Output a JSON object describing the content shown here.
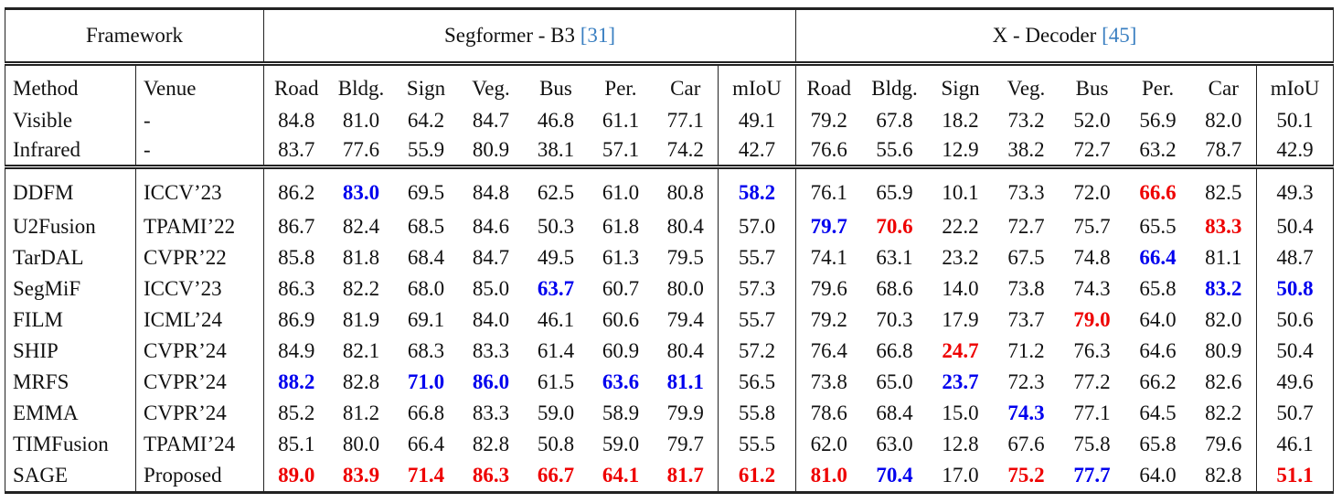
{
  "table": {
    "framework_label": "Framework",
    "groups": [
      {
        "name": "Segformer - B3",
        "cite": "[31]"
      },
      {
        "name": "X - Decoder",
        "cite": "[45]"
      }
    ],
    "cite_color": "#3a7fc1",
    "method_label": "Method",
    "venue_label": "Venue",
    "columns": [
      "Road",
      "Bldg.",
      "Sign",
      "Veg.",
      "Bus",
      "Per.",
      "Car",
      "mIoU"
    ],
    "baseline_rows": [
      {
        "method": "Visible",
        "venue": "-",
        "values": [
          "84.8",
          "81.0",
          "64.2",
          "84.7",
          "46.8",
          "61.1",
          "77.1",
          "49.1",
          "79.2",
          "67.8",
          "18.2",
          "73.2",
          "52.0",
          "56.9",
          "82.0",
          "50.1"
        ],
        "colors": [
          null,
          null,
          null,
          null,
          null,
          null,
          null,
          null,
          null,
          null,
          null,
          null,
          null,
          null,
          null,
          null
        ]
      },
      {
        "method": "Infrared",
        "venue": "-",
        "values": [
          "83.7",
          "77.6",
          "55.9",
          "80.9",
          "38.1",
          "57.1",
          "74.2",
          "42.7",
          "76.6",
          "55.6",
          "12.9",
          "38.2",
          "72.7",
          "63.2",
          "78.7",
          "42.9"
        ],
        "colors": [
          null,
          null,
          null,
          null,
          null,
          null,
          null,
          null,
          null,
          null,
          null,
          null,
          null,
          null,
          null,
          null
        ]
      }
    ],
    "rows": [
      {
        "method": "DDFM",
        "venue": "ICCV’23",
        "values": [
          "86.2",
          "83.0",
          "69.5",
          "84.8",
          "62.5",
          "61.0",
          "80.8",
          "58.2",
          "76.1",
          "65.9",
          "10.1",
          "73.3",
          "72.0",
          "66.6",
          "82.5",
          "49.3"
        ],
        "colors": [
          null,
          "#0000ee",
          null,
          null,
          null,
          null,
          null,
          "#0000ee",
          null,
          null,
          null,
          null,
          null,
          "#ee0000",
          null,
          null
        ]
      },
      {
        "method": "U2Fusion",
        "venue": "TPAMI’22",
        "values": [
          "86.7",
          "82.4",
          "68.5",
          "84.6",
          "50.3",
          "61.8",
          "80.4",
          "57.0",
          "79.7",
          "70.6",
          "22.2",
          "72.7",
          "75.7",
          "65.5",
          "83.3",
          "50.4"
        ],
        "colors": [
          null,
          null,
          null,
          null,
          null,
          null,
          null,
          null,
          "#0000ee",
          "#ee0000",
          null,
          null,
          null,
          null,
          "#ee0000",
          null
        ]
      },
      {
        "method": "TarDAL",
        "venue": "CVPR’22",
        "values": [
          "85.8",
          "81.8",
          "68.4",
          "84.7",
          "49.5",
          "61.3",
          "79.5",
          "55.7",
          "74.1",
          "63.1",
          "23.2",
          "67.5",
          "74.8",
          "66.4",
          "81.1",
          "48.7"
        ],
        "colors": [
          null,
          null,
          null,
          null,
          null,
          null,
          null,
          null,
          null,
          null,
          null,
          null,
          null,
          "#0000ee",
          null,
          null
        ]
      },
      {
        "method": "SegMiF",
        "venue": "ICCV’23",
        "values": [
          "86.3",
          "82.2",
          "68.0",
          "85.0",
          "63.7",
          "60.7",
          "80.0",
          "57.3",
          "79.6",
          "68.6",
          "14.0",
          "73.8",
          "74.3",
          "65.8",
          "83.2",
          "50.8"
        ],
        "colors": [
          null,
          null,
          null,
          null,
          "#0000ee",
          null,
          null,
          null,
          null,
          null,
          null,
          null,
          null,
          null,
          "#0000ee",
          "#0000ee"
        ]
      },
      {
        "method": "FILM",
        "venue": "ICML’24",
        "values": [
          "86.9",
          "81.9",
          "69.1",
          "84.0",
          "46.1",
          "60.6",
          "79.4",
          "55.7",
          "79.2",
          "70.3",
          "17.9",
          "73.7",
          "79.0",
          "64.0",
          "82.0",
          "50.6"
        ],
        "colors": [
          null,
          null,
          null,
          null,
          null,
          null,
          null,
          null,
          null,
          null,
          null,
          null,
          "#ee0000",
          null,
          null,
          null
        ]
      },
      {
        "method": "SHIP",
        "venue": "CVPR’24",
        "values": [
          "84.9",
          "82.1",
          "68.3",
          "83.3",
          "61.4",
          "60.9",
          "80.4",
          "57.2",
          "76.4",
          "66.8",
          "24.7",
          "71.2",
          "76.3",
          "64.6",
          "80.9",
          "50.4"
        ],
        "colors": [
          null,
          null,
          null,
          null,
          null,
          null,
          null,
          null,
          null,
          null,
          "#ee0000",
          null,
          null,
          null,
          null,
          null
        ]
      },
      {
        "method": "MRFS",
        "venue": "CVPR’24",
        "values": [
          "88.2",
          "82.8",
          "71.0",
          "86.0",
          "61.5",
          "63.6",
          "81.1",
          "56.5",
          "73.8",
          "65.0",
          "23.7",
          "72.3",
          "77.2",
          "66.2",
          "82.6",
          "49.6"
        ],
        "colors": [
          "#0000ee",
          null,
          "#0000ee",
          "#0000ee",
          null,
          "#0000ee",
          "#0000ee",
          null,
          null,
          null,
          "#0000ee",
          null,
          null,
          null,
          null,
          null
        ]
      },
      {
        "method": "EMMA",
        "venue": "CVPR’24",
        "values": [
          "85.2",
          "81.2",
          "66.8",
          "83.3",
          "59.0",
          "58.9",
          "79.9",
          "55.8",
          "78.6",
          "68.4",
          "15.0",
          "74.3",
          "77.1",
          "64.5",
          "82.2",
          "50.7"
        ],
        "colors": [
          null,
          null,
          null,
          null,
          null,
          null,
          null,
          null,
          null,
          null,
          null,
          "#0000ee",
          null,
          null,
          null,
          null
        ]
      },
      {
        "method": "TIMFusion",
        "venue": "TPAMI’24",
        "values": [
          "85.1",
          "80.0",
          "66.4",
          "82.8",
          "50.8",
          "59.0",
          "79.7",
          "55.5",
          "62.0",
          "63.0",
          "12.8",
          "67.6",
          "75.8",
          "65.8",
          "79.6",
          "46.1"
        ],
        "colors": [
          null,
          null,
          null,
          null,
          null,
          null,
          null,
          null,
          null,
          null,
          null,
          null,
          null,
          null,
          null,
          null
        ]
      },
      {
        "method": "SAGE",
        "venue": "Proposed",
        "values": [
          "89.0",
          "83.9",
          "71.4",
          "86.3",
          "66.7",
          "64.1",
          "81.7",
          "61.2",
          "81.0",
          "70.4",
          "17.0",
          "75.2",
          "77.7",
          "64.0",
          "82.8",
          "51.1"
        ],
        "colors": [
          "#ee0000",
          "#ee0000",
          "#ee0000",
          "#ee0000",
          "#ee0000",
          "#ee0000",
          "#ee0000",
          "#ee0000",
          "#ee0000",
          "#0000ee",
          null,
          "#ee0000",
          "#0000ee",
          null,
          null,
          "#ee0000"
        ]
      }
    ]
  }
}
